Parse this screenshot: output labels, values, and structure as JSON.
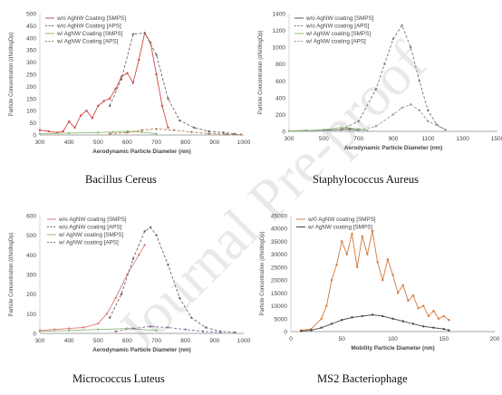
{
  "captions": {
    "p1": "Bacillus Cereus",
    "p2": "Staphylococcus Aureus",
    "p3": "Micrococcus Luteus",
    "p4": "MS2 Bacteriophage"
  },
  "watermark": "Journal Pre-proof",
  "colors": {
    "series_red": "#d04a4a",
    "series_gray": "#666666",
    "series_green": "#8fb87a",
    "series_orange": "#c98a3a",
    "series_dark": "#444444",
    "series_lightgray": "#9a9a9a"
  },
  "chart_data": [
    {
      "type": "line",
      "caption": "Bacillus Cereus",
      "xlabel": "Aerodynamic Particle Diameter (nm)",
      "ylabel": "Particle Concentration (dN/dlogDp)",
      "xlim": [
        300,
        1000
      ],
      "ylim": [
        0,
        500
      ],
      "xticks": [
        300,
        400,
        500,
        600,
        700,
        800,
        900,
        1000
      ],
      "yticks": [
        0,
        50,
        100,
        150,
        200,
        250,
        300,
        350,
        400,
        450,
        500
      ],
      "legend_position": "top-left",
      "series": [
        {
          "name": "w/o AgNW Coating [SMPS]",
          "color": "#d04a4a",
          "dash": "solid",
          "x": [
            300,
            330,
            360,
            380,
            400,
            420,
            440,
            460,
            480,
            500,
            520,
            540,
            560,
            580,
            600,
            620,
            640,
            660,
            680,
            700,
            720,
            740
          ],
          "y": [
            20,
            15,
            10,
            15,
            55,
            30,
            80,
            100,
            70,
            120,
            140,
            150,
            190,
            240,
            255,
            215,
            310,
            420,
            380,
            250,
            120,
            30
          ]
        },
        {
          "name": "w/o AgNW Coating [APS]",
          "color": "#666666",
          "dash": "dashed",
          "x": [
            540,
            580,
            620,
            660,
            700,
            740,
            780,
            830,
            880,
            930,
            970
          ],
          "y": [
            120,
            230,
            415,
            420,
            330,
            150,
            60,
            30,
            15,
            10,
            5
          ]
        },
        {
          "name": "w/ AgNW Coating [SMPS]",
          "color": "#8fb87a",
          "dash": "solid",
          "x": [
            300,
            400,
            500,
            550,
            600,
            650,
            700
          ],
          "y": [
            5,
            8,
            10,
            12,
            15,
            12,
            5
          ]
        },
        {
          "name": "w/ AgNW Coating [APS]",
          "color": "#b07a4a",
          "dash": "dashed",
          "x": [
            540,
            600,
            650,
            700,
            760,
            820,
            880,
            940,
            990
          ],
          "y": [
            5,
            10,
            20,
            25,
            20,
            12,
            6,
            3,
            2
          ]
        }
      ]
    },
    {
      "type": "line",
      "caption": "Staphylococcus Aureus",
      "xlabel": "Aerodynamic Particle Diameter (nm)",
      "ylabel": "Particle Concentration (dN/dlogDp)",
      "xlim": [
        300,
        1500
      ],
      "ylim": [
        0,
        1400
      ],
      "xticks": [
        300,
        500,
        700,
        900,
        1100,
        1300,
        1500
      ],
      "yticks": [
        0,
        200,
        400,
        600,
        800,
        1000,
        1200,
        1400
      ],
      "legend_position": "top-left",
      "series": [
        {
          "name": "w/o AgNW coating [SMPS]",
          "color": "#555555",
          "dash": "solid",
          "x": [
            300,
            400,
            500,
            600,
            650,
            700
          ],
          "y": [
            5,
            10,
            15,
            20,
            25,
            15
          ]
        },
        {
          "name": "w/o AgNW coating [APS]",
          "color": "#777777",
          "dash": "dashed",
          "x": [
            600,
            700,
            800,
            850,
            900,
            950,
            1000,
            1050,
            1100,
            1150,
            1200
          ],
          "y": [
            20,
            120,
            500,
            800,
            1100,
            1260,
            1000,
            600,
            250,
            80,
            20
          ]
        },
        {
          "name": "w/ AgNW coating [SMPS]",
          "color": "#8fb87a",
          "dash": "solid",
          "x": [
            300,
            400,
            500,
            600,
            700,
            750
          ],
          "y": [
            5,
            8,
            20,
            45,
            30,
            10
          ]
        },
        {
          "name": "w/ AgNW coating [APS]",
          "color": "#999999",
          "dash": "dashed",
          "x": [
            700,
            800,
            900,
            950,
            1000,
            1050,
            1100,
            1200
          ],
          "y": [
            10,
            60,
            200,
            280,
            320,
            250,
            120,
            20
          ]
        }
      ]
    },
    {
      "type": "line",
      "caption": "Micrococcus Luteus",
      "xlabel": "Aerodynamic Particle Diameter (nm)",
      "ylabel": "Particle Concentration (dN/dlogDp)",
      "xlim": [
        300,
        1000
      ],
      "ylim": [
        0,
        600
      ],
      "xticks": [
        300,
        400,
        500,
        600,
        700,
        800,
        900,
        1000
      ],
      "yticks": [
        0,
        100,
        200,
        300,
        400,
        500,
        600
      ],
      "legend_position": "top-left",
      "series": [
        {
          "name": "w/o AgNW coating [SMPS]",
          "color": "#e07b7b",
          "dash": "solid",
          "x": [
            300,
            350,
            400,
            450,
            500,
            530,
            560,
            600,
            640,
            660
          ],
          "y": [
            15,
            20,
            25,
            30,
            50,
            100,
            180,
            300,
            400,
            450
          ]
        },
        {
          "name": "w/o AgNW coating [APS]",
          "color": "#666666",
          "dash": "dashed",
          "x": [
            540,
            580,
            620,
            660,
            680,
            700,
            740,
            780,
            820,
            870,
            920,
            970
          ],
          "y": [
            80,
            200,
            380,
            520,
            540,
            500,
            350,
            180,
            80,
            30,
            10,
            5
          ]
        },
        {
          "name": "w/ AgNW coating [SMPS]",
          "color": "#8fb87a",
          "dash": "solid",
          "x": [
            300,
            400,
            500,
            600,
            700
          ],
          "y": [
            10,
            15,
            20,
            25,
            15
          ]
        },
        {
          "name": "w/ AgNW coating [APS]",
          "color": "#8a6a9a",
          "dash": "dashed",
          "x": [
            560,
            620,
            680,
            740,
            800,
            860,
            920
          ],
          "y": [
            10,
            25,
            35,
            30,
            20,
            10,
            5
          ]
        }
      ]
    },
    {
      "type": "line",
      "caption": "MS2 Bacteriophage",
      "xlabel": "Mobility Particle Diameter (nm)",
      "ylabel": "Particle Concentration (dN/dlogDp)",
      "xlim": [
        0,
        200
      ],
      "ylim": [
        0,
        45000
      ],
      "xticks": [
        0,
        50,
        100,
        150,
        200
      ],
      "yticks": [
        0,
        5000,
        10000,
        15000,
        20000,
        25000,
        30000,
        35000,
        40000,
        45000
      ],
      "legend_position": "top-left",
      "series": [
        {
          "name": "w/0 AgNW coating [SMPS]",
          "color": "#d4783a",
          "dash": "solid",
          "x": [
            10,
            20,
            30,
            35,
            40,
            45,
            50,
            55,
            60,
            65,
            70,
            75,
            80,
            85,
            90,
            95,
            100,
            105,
            110,
            115,
            120,
            125,
            130,
            135,
            140,
            145,
            150,
            155
          ],
          "y": [
            500,
            1000,
            5000,
            10000,
            20000,
            26000,
            35000,
            30000,
            38000,
            25000,
            37000,
            30000,
            39000,
            27000,
            20000,
            28000,
            22000,
            15000,
            18000,
            12000,
            14000,
            9000,
            10000,
            6000,
            8000,
            5000,
            6000,
            4500
          ]
        },
        {
          "name": "w/ AgNW coating [SMPS]",
          "color": "#444444",
          "dash": "solid",
          "x": [
            10,
            20,
            30,
            40,
            50,
            60,
            70,
            80,
            90,
            100,
            110,
            120,
            130,
            140,
            150,
            155
          ],
          "y": [
            200,
            500,
            1500,
            3000,
            4500,
            5500,
            6000,
            6500,
            6000,
            5000,
            4000,
            3000,
            2000,
            1500,
            1000,
            500
          ]
        }
      ]
    }
  ]
}
